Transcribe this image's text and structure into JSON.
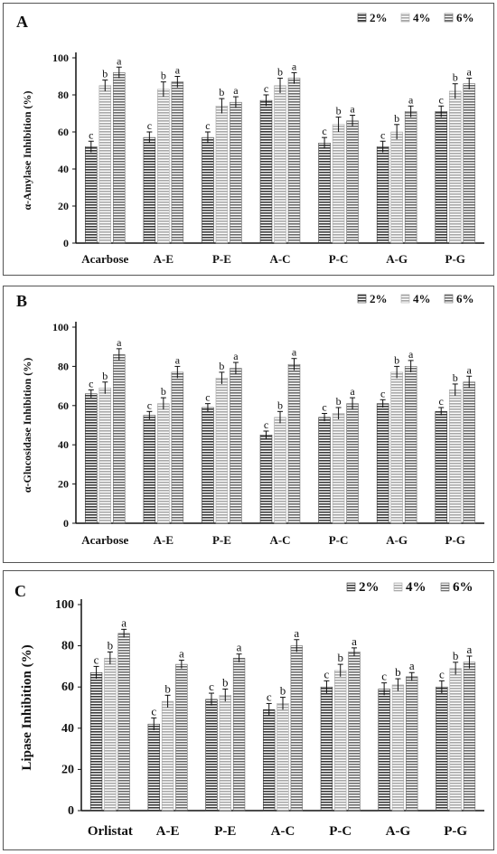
{
  "colors": {
    "s2": "#3a3a3a",
    "s4": "#a8a8a8",
    "s6": "#6b6b6b",
    "axis": "#111111"
  },
  "chart_data": [
    {
      "type": "bar",
      "panel_label": "A",
      "ylabel": "α-Amylase Inhibition (%)",
      "ylim": [
        0,
        100
      ],
      "yticks": [
        0,
        20,
        40,
        60,
        80,
        100
      ],
      "categories": [
        "Acarbose",
        "A-E",
        "P-E",
        "A-C",
        "P-C",
        "A-G",
        "P-G"
      ],
      "legend": "top-right",
      "series": [
        {
          "name": "2%",
          "values": [
            52,
            57,
            57,
            77,
            54,
            52,
            71
          ],
          "errors": [
            3,
            3,
            3,
            3,
            3,
            3,
            3
          ],
          "letters": [
            "c",
            "c",
            "c",
            "c",
            "c",
            "c",
            "c"
          ]
        },
        {
          "name": "4%",
          "values": [
            85,
            83,
            74,
            85,
            64,
            60,
            82
          ],
          "errors": [
            3,
            4,
            4,
            4,
            4,
            4,
            4
          ],
          "letters": [
            "b",
            "b",
            "b",
            "b",
            "b",
            "b",
            "b"
          ]
        },
        {
          "name": "6%",
          "values": [
            92,
            87,
            76,
            89,
            66,
            71,
            86
          ],
          "errors": [
            3,
            3,
            3,
            3,
            3,
            3,
            3
          ],
          "letters": [
            "a",
            "a",
            "a",
            "a",
            "a",
            "a",
            "a"
          ]
        }
      ]
    },
    {
      "type": "bar",
      "panel_label": "B",
      "ylabel": "α-Glucosidase Inhibition (%)",
      "ylim": [
        0,
        100
      ],
      "yticks": [
        0,
        20,
        40,
        60,
        80,
        100
      ],
      "categories": [
        "Acarbose",
        "A-E",
        "P-E",
        "A-C",
        "P-C",
        "A-G",
        "P-G"
      ],
      "legend": "top-right",
      "series": [
        {
          "name": "2%",
          "values": [
            66,
            55,
            59,
            45,
            54,
            61,
            57
          ],
          "errors": [
            2,
            2,
            2,
            2,
            2,
            2,
            2
          ],
          "letters": [
            "c",
            "c",
            "c",
            "c",
            "c",
            "c",
            "c"
          ]
        },
        {
          "name": "4%",
          "values": [
            69,
            61,
            74,
            54,
            56,
            77,
            68
          ],
          "errors": [
            3,
            3,
            3,
            3,
            3,
            3,
            3
          ],
          "letters": [
            "b",
            "b",
            "b",
            "b",
            "b",
            "b",
            "b"
          ]
        },
        {
          "name": "6%",
          "values": [
            86,
            77,
            79,
            81,
            61,
            80,
            72
          ],
          "errors": [
            3,
            3,
            3,
            3,
            3,
            3,
            3
          ],
          "letters": [
            "a",
            "a",
            "a",
            "a",
            "a",
            "a",
            "a"
          ]
        }
      ]
    },
    {
      "type": "bar",
      "panel_label": "C",
      "ylabel": "Lipase Inhibition (%)",
      "ylim": [
        0,
        100
      ],
      "yticks": [
        0,
        20,
        40,
        60,
        80,
        100
      ],
      "categories": [
        "Orlistat",
        "A-E",
        "P-E",
        "A-C",
        "P-C",
        "A-G",
        "P-G"
      ],
      "legend": "top-right",
      "series": [
        {
          "name": "2%",
          "values": [
            67,
            42,
            54,
            49,
            60,
            59,
            60
          ],
          "errors": [
            3,
            3,
            3,
            3,
            3,
            3,
            3
          ],
          "letters": [
            "c",
            "c",
            "c",
            "c",
            "c",
            "c",
            "c"
          ]
        },
        {
          "name": "4%",
          "values": [
            74,
            53,
            56,
            52,
            68,
            61,
            69
          ],
          "errors": [
            3,
            3,
            3,
            3,
            3,
            3,
            3
          ],
          "letters": [
            "b",
            "b",
            "b",
            "b",
            "b",
            "b",
            "b"
          ]
        },
        {
          "name": "6%",
          "values": [
            86,
            71,
            74,
            80,
            77,
            65,
            72
          ],
          "errors": [
            2,
            2,
            2,
            3,
            2,
            2,
            3
          ],
          "letters": [
            "a",
            "a",
            "a",
            "a",
            "a",
            "a",
            "a"
          ]
        }
      ]
    }
  ]
}
